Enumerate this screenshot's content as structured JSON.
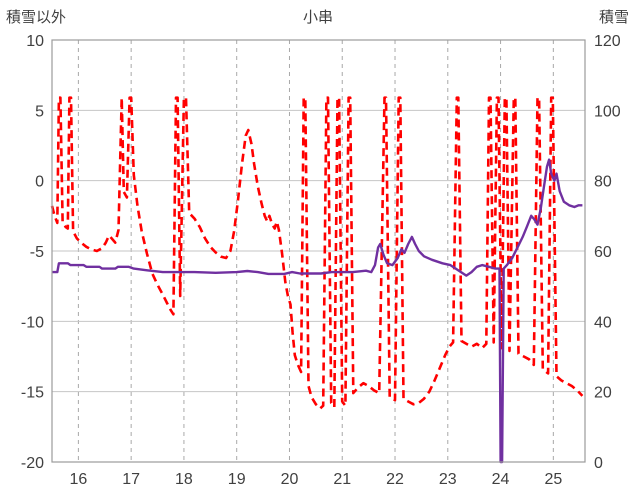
{
  "header": {
    "left_axis_title": "積雪以外",
    "title": "小串",
    "right_axis_title": "積雪"
  },
  "chart_data": {
    "type": "line",
    "title": "小串",
    "legend": "none",
    "background": "#FFFFFF",
    "border_color": "#9B9B9B",
    "grid": {
      "h_color": "#C6C6C6",
      "v_color": "#A8A8A8",
      "h_style": "solid",
      "v_style": "dashed"
    },
    "x_axis": {
      "min": 15.5,
      "max": 25.6,
      "ticks": [
        16,
        17,
        18,
        19,
        20,
        21,
        22,
        23,
        24,
        25
      ]
    },
    "y_left": {
      "label": "積雪以外",
      "min": -20,
      "max": 10,
      "ticks": [
        10,
        5,
        0,
        -5,
        -10,
        -15,
        -20
      ]
    },
    "y_right": {
      "label": "積雪",
      "min": 0,
      "max": 120,
      "ticks": [
        120,
        100,
        80,
        60,
        40,
        20,
        0
      ]
    },
    "series": [
      {
        "name": "積雪以外",
        "axis": "left",
        "color": "#FF0000",
        "style": "dashed",
        "width": 2.6,
        "points": [
          [
            15.5,
            -1.8
          ],
          [
            15.55,
            -2.5
          ],
          [
            15.6,
            -3.0
          ],
          [
            15.63,
            5.9
          ],
          [
            15.66,
            5.9
          ],
          [
            15.7,
            -2.9
          ],
          [
            15.76,
            -3.3
          ],
          [
            15.8,
            -3.4
          ],
          [
            15.83,
            5.9
          ],
          [
            15.86,
            5.9
          ],
          [
            15.9,
            -3.6
          ],
          [
            15.97,
            -4.1
          ],
          [
            16.05,
            -4.4
          ],
          [
            16.15,
            -4.7
          ],
          [
            16.25,
            -4.9
          ],
          [
            16.35,
            -5.0
          ],
          [
            16.45,
            -4.8
          ],
          [
            16.52,
            -4.4
          ],
          [
            16.58,
            -3.9
          ],
          [
            16.63,
            -4.1
          ],
          [
            16.7,
            -4.4
          ],
          [
            16.76,
            -3.5
          ],
          [
            16.82,
            5.9
          ],
          [
            16.86,
            -0.8
          ],
          [
            16.92,
            -1.2
          ],
          [
            16.97,
            5.9
          ],
          [
            17.0,
            5.9
          ],
          [
            17.05,
            0.4
          ],
          [
            17.12,
            -1.8
          ],
          [
            17.2,
            -3.6
          ],
          [
            17.3,
            -5.2
          ],
          [
            17.4,
            -6.6
          ],
          [
            17.5,
            -7.4
          ],
          [
            17.6,
            -8.1
          ],
          [
            17.68,
            -8.7
          ],
          [
            17.75,
            -9.2
          ],
          [
            17.8,
            -9.5
          ],
          [
            17.85,
            5.9
          ],
          [
            17.88,
            5.9
          ],
          [
            17.93,
            -8.2
          ],
          [
            18.0,
            5.9
          ],
          [
            18.04,
            5.9
          ],
          [
            18.1,
            -2.3
          ],
          [
            18.2,
            -2.7
          ],
          [
            18.3,
            -3.3
          ],
          [
            18.4,
            -4.1
          ],
          [
            18.5,
            -4.7
          ],
          [
            18.6,
            -5.1
          ],
          [
            18.7,
            -5.4
          ],
          [
            18.8,
            -5.5
          ],
          [
            18.88,
            -5.0
          ],
          [
            18.95,
            -3.6
          ],
          [
            19.02,
            -1.5
          ],
          [
            19.1,
            1.2
          ],
          [
            19.17,
            3.2
          ],
          [
            19.22,
            3.6
          ],
          [
            19.28,
            2.6
          ],
          [
            19.33,
            1.2
          ],
          [
            19.4,
            -0.4
          ],
          [
            19.47,
            -1.6
          ],
          [
            19.53,
            -2.5
          ],
          [
            19.58,
            -2.9
          ],
          [
            19.62,
            -2.5
          ],
          [
            19.67,
            -3.1
          ],
          [
            19.72,
            -3.4
          ],
          [
            19.76,
            -2.9
          ],
          [
            19.8,
            -3.5
          ],
          [
            19.86,
            -5.2
          ],
          [
            19.92,
            -7.2
          ],
          [
            19.97,
            -8.2
          ],
          [
            20.02,
            -8.8
          ],
          [
            20.06,
            -10.8
          ],
          [
            20.1,
            -12.4
          ],
          [
            20.16,
            -13.1
          ],
          [
            20.22,
            -13.6
          ],
          [
            20.27,
            5.9
          ],
          [
            20.3,
            5.9
          ],
          [
            20.36,
            -14.6
          ],
          [
            20.42,
            -15.4
          ],
          [
            20.5,
            -15.9
          ],
          [
            20.58,
            -16.2
          ],
          [
            20.64,
            -16.0
          ],
          [
            20.7,
            5.9
          ],
          [
            20.73,
            5.9
          ],
          [
            20.79,
            -15.8
          ],
          [
            20.85,
            -16.1
          ],
          [
            20.91,
            5.9
          ],
          [
            20.94,
            5.9
          ],
          [
            21.0,
            -15.7
          ],
          [
            21.06,
            -16.0
          ],
          [
            21.12,
            5.9
          ],
          [
            21.15,
            5.9
          ],
          [
            21.21,
            -15.1
          ],
          [
            21.3,
            -14.7
          ],
          [
            21.4,
            -14.4
          ],
          [
            21.5,
            -14.6
          ],
          [
            21.6,
            -14.9
          ],
          [
            21.7,
            -15.1
          ],
          [
            21.8,
            5.9
          ],
          [
            21.83,
            5.9
          ],
          [
            21.9,
            -15.4
          ],
          [
            22.0,
            -15.6
          ],
          [
            22.07,
            5.9
          ],
          [
            22.1,
            5.9
          ],
          [
            22.16,
            -15.5
          ],
          [
            22.25,
            -15.7
          ],
          [
            22.35,
            -15.9
          ],
          [
            22.45,
            -15.8
          ],
          [
            22.55,
            -15.5
          ],
          [
            22.65,
            -15.0
          ],
          [
            22.75,
            -14.2
          ],
          [
            22.85,
            -13.3
          ],
          [
            22.95,
            -12.4
          ],
          [
            23.03,
            -11.8
          ],
          [
            23.1,
            -11.5
          ],
          [
            23.17,
            5.9
          ],
          [
            23.2,
            5.9
          ],
          [
            23.26,
            -11.4
          ],
          [
            23.35,
            -11.6
          ],
          [
            23.45,
            -11.8
          ],
          [
            23.55,
            -11.6
          ],
          [
            23.65,
            -11.9
          ],
          [
            23.73,
            -11.6
          ],
          [
            23.78,
            5.9
          ],
          [
            23.81,
            5.9
          ],
          [
            23.87,
            -11.5
          ],
          [
            23.93,
            5.9
          ],
          [
            23.96,
            5.9
          ],
          [
            24.02,
            -11.9
          ],
          [
            24.08,
            5.9
          ],
          [
            24.11,
            5.9
          ],
          [
            24.17,
            -12.1
          ],
          [
            24.25,
            5.9
          ],
          [
            24.28,
            5.9
          ],
          [
            24.34,
            -12.3
          ],
          [
            24.44,
            -12.5
          ],
          [
            24.54,
            -12.7
          ],
          [
            24.63,
            -13.1
          ],
          [
            24.7,
            5.9
          ],
          [
            24.73,
            5.9
          ],
          [
            24.8,
            -13.4
          ],
          [
            24.9,
            -13.7
          ],
          [
            24.96,
            5.9
          ],
          [
            24.99,
            5.9
          ],
          [
            25.06,
            -13.9
          ],
          [
            25.15,
            -14.2
          ],
          [
            25.25,
            -14.4
          ],
          [
            25.35,
            -14.6
          ],
          [
            25.45,
            -14.9
          ],
          [
            25.55,
            -15.3
          ]
        ]
      },
      {
        "name": "積雪",
        "axis": "right",
        "color": "#7030A0",
        "style": "solid",
        "width": 2.4,
        "points": [
          [
            15.5,
            54
          ],
          [
            15.6,
            54
          ],
          [
            15.63,
            56.5
          ],
          [
            15.8,
            56.5
          ],
          [
            15.85,
            56
          ],
          [
            16.1,
            56
          ],
          [
            16.15,
            55.5
          ],
          [
            16.4,
            55.5
          ],
          [
            16.45,
            55
          ],
          [
            16.7,
            55
          ],
          [
            16.75,
            55.5
          ],
          [
            16.95,
            55.5
          ],
          [
            17.05,
            55
          ],
          [
            17.3,
            54.5
          ],
          [
            17.6,
            54
          ],
          [
            18.2,
            54
          ],
          [
            18.6,
            53.8
          ],
          [
            19.0,
            54
          ],
          [
            19.2,
            54.3
          ],
          [
            19.4,
            54
          ],
          [
            19.6,
            53.5
          ],
          [
            19.9,
            53.5
          ],
          [
            20.05,
            54
          ],
          [
            20.2,
            53.6
          ],
          [
            20.6,
            53.6
          ],
          [
            20.8,
            54
          ],
          [
            21.2,
            54
          ],
          [
            21.45,
            54.4
          ],
          [
            21.55,
            54
          ],
          [
            21.62,
            56
          ],
          [
            21.68,
            61
          ],
          [
            21.72,
            62
          ],
          [
            21.78,
            59
          ],
          [
            21.85,
            56.5
          ],
          [
            21.95,
            56
          ],
          [
            22.05,
            58
          ],
          [
            22.12,
            60.5
          ],
          [
            22.18,
            59.5
          ],
          [
            22.25,
            62
          ],
          [
            22.32,
            64
          ],
          [
            22.38,
            62
          ],
          [
            22.45,
            60
          ],
          [
            22.55,
            58.5
          ],
          [
            22.7,
            57.5
          ],
          [
            22.9,
            56.5
          ],
          [
            23.05,
            56
          ],
          [
            23.15,
            55
          ],
          [
            23.25,
            54
          ],
          [
            23.35,
            53
          ],
          [
            23.45,
            54
          ],
          [
            23.55,
            55.5
          ],
          [
            23.65,
            56
          ],
          [
            23.78,
            55.5
          ],
          [
            23.9,
            55
          ],
          [
            23.98,
            55
          ],
          [
            24.0,
            0
          ],
          [
            24.03,
            0
          ],
          [
            24.06,
            55
          ],
          [
            24.12,
            56
          ],
          [
            24.22,
            58
          ],
          [
            24.32,
            61
          ],
          [
            24.42,
            64
          ],
          [
            24.5,
            67
          ],
          [
            24.58,
            70
          ],
          [
            24.64,
            69
          ],
          [
            24.7,
            67.5
          ],
          [
            24.76,
            72
          ],
          [
            24.82,
            78
          ],
          [
            24.88,
            84
          ],
          [
            24.92,
            86
          ],
          [
            24.96,
            82
          ],
          [
            25.02,
            80
          ],
          [
            25.06,
            82
          ],
          [
            25.12,
            77
          ],
          [
            25.2,
            74
          ],
          [
            25.3,
            73
          ],
          [
            25.4,
            72.5
          ],
          [
            25.48,
            73
          ],
          [
            25.55,
            73
          ]
        ]
      }
    ]
  }
}
